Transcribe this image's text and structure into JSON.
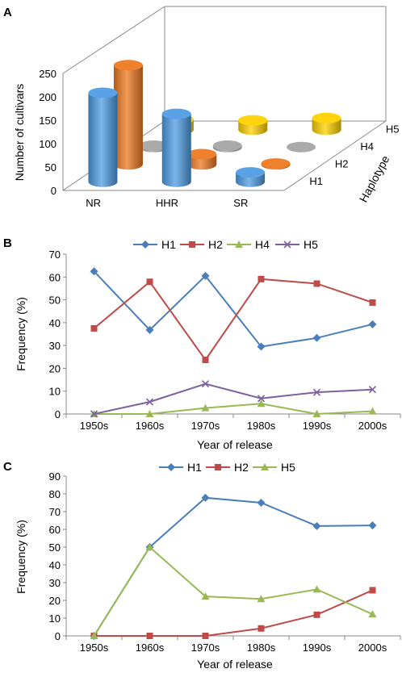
{
  "colors": {
    "H1": "#4a7ebb",
    "H2": "#be4b48",
    "H4": "#98b954",
    "H5": "#7d60a0",
    "NR_blue": "#4f9de4",
    "orange": "#ee7a22",
    "yellow": "#ffd200",
    "gray": "#a6a6a6"
  },
  "chart_data": [
    {
      "type": "bar",
      "panel": "A",
      "ylabel": "Number of cultivars",
      "zlabel": "Haplotype",
      "categories": [
        "NR",
        "HHR",
        "SR"
      ],
      "depth_categories": [
        "H1",
        "H2",
        "H4",
        "H5"
      ],
      "yticks": [
        0,
        50,
        100,
        150,
        200,
        250
      ],
      "ylim": [
        0,
        250
      ],
      "series": [
        {
          "name": "H1",
          "values": [
            190,
            145,
            20
          ]
        },
        {
          "name": "H2",
          "values": [
            212,
            22,
            2
          ]
        },
        {
          "name": "H4",
          "values": [
            3,
            3,
            0
          ]
        },
        {
          "name": "H5",
          "values": [
            22,
            20,
            25
          ]
        }
      ]
    },
    {
      "type": "line",
      "panel": "B",
      "categories": [
        "1950s",
        "1960s",
        "1970s",
        "1980s",
        "1990s",
        "2000s"
      ],
      "xlabel": "Year of release",
      "ylabel": "Frequency (%)",
      "ylim": [
        0,
        70
      ],
      "yticks": [
        0,
        10,
        20,
        30,
        40,
        50,
        60,
        70
      ],
      "legend_position": "top",
      "series": [
        {
          "name": "H1",
          "marker": "diamond",
          "values": [
            62.5,
            36.8,
            60.5,
            29.5,
            33.3,
            39.3
          ]
        },
        {
          "name": "H2",
          "marker": "square",
          "values": [
            37.5,
            57.9,
            23.7,
            59.1,
            57.1,
            48.8
          ]
        },
        {
          "name": "H4",
          "marker": "triangle",
          "values": [
            0,
            0,
            2.6,
            4.5,
            0,
            1.2
          ]
        },
        {
          "name": "H5",
          "marker": "x",
          "values": [
            0,
            5.3,
            13.2,
            6.8,
            9.5,
            10.7
          ]
        }
      ]
    },
    {
      "type": "line",
      "panel": "C",
      "categories": [
        "1950s",
        "1960s",
        "1970s",
        "1980s",
        "1990s",
        "2000s"
      ],
      "xlabel": "Year of release",
      "ylabel": "Frequency (%)",
      "ylim": [
        0,
        90
      ],
      "yticks": [
        0,
        10,
        20,
        30,
        40,
        50,
        60,
        70,
        80,
        90
      ],
      "legend_position": "top",
      "series": [
        {
          "name": "H1",
          "marker": "diamond",
          "values": [
            0,
            50,
            77.8,
            75,
            61.9,
            62.2
          ]
        },
        {
          "name": "H2",
          "marker": "square",
          "values": [
            0,
            0,
            0,
            4.2,
            11.9,
            25.7
          ]
        },
        {
          "name": "H5",
          "marker": "triangle",
          "values": [
            0,
            50,
            22.2,
            20.8,
            26.2,
            12.2
          ]
        }
      ]
    }
  ],
  "panels": {
    "a": "A",
    "b": "B",
    "c": "C"
  }
}
